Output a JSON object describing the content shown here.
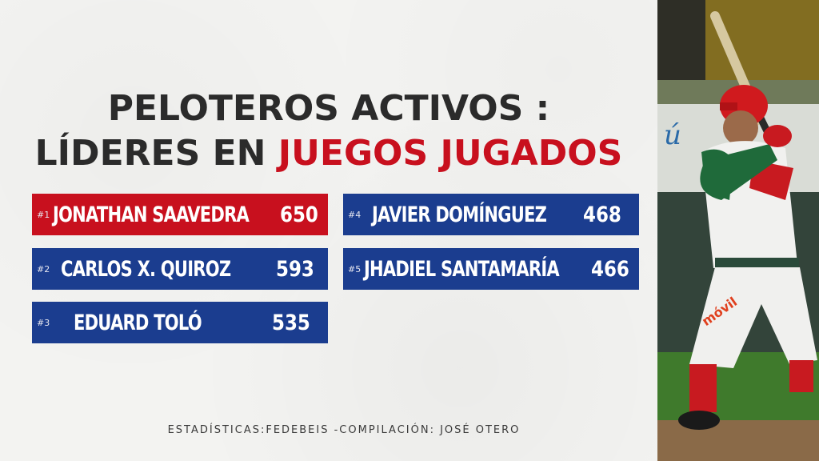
{
  "title": {
    "line1": "PELOTEROS ACTIVOS :",
    "line2_plain": "LÍDERES EN ",
    "line2_accent": "JUEGOS JUGADOS"
  },
  "leaders": [
    {
      "rank": "#1",
      "name": "JONATHAN SAAVEDRA",
      "value": "650"
    },
    {
      "rank": "#2",
      "name": "CARLOS X. QUIROZ",
      "value": "593"
    },
    {
      "rank": "#3",
      "name": "EDUARD TOLÓ",
      "value": "535"
    },
    {
      "rank": "#4",
      "name": "JAVIER DOMÍNGUEZ",
      "value": "468"
    },
    {
      "rank": "#5",
      "name": "JHADIEL SANTAMARÍA",
      "value": "466"
    }
  ],
  "footer": "ESTADÍSTICAS:FEDEBEIS -COMPILACIÓN: JOSÉ OTERO",
  "colors": {
    "blue": "#1b3d8f",
    "red": "#c8101e",
    "text": "#2b2b2b"
  },
  "photo": {
    "subject": "baseball-batter-photo",
    "jersey_text": "móvil"
  }
}
